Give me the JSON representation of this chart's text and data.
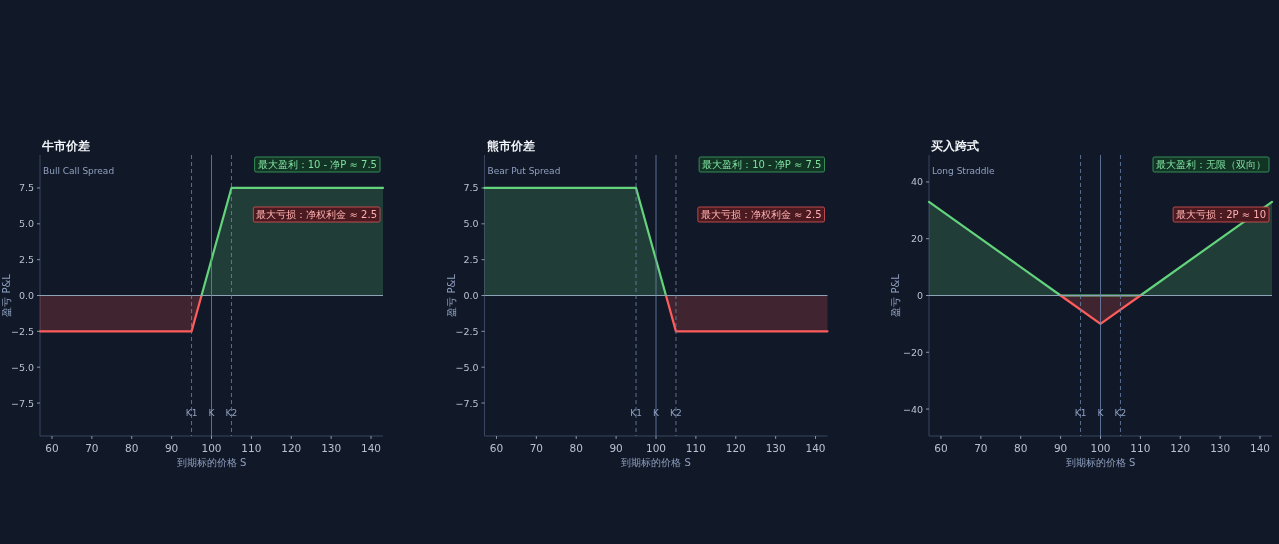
{
  "chart_data": [
    {
      "type": "area",
      "title": "牛市价差",
      "subtitle": "Bull Call Spread",
      "xlabel": "到期标的价格 S",
      "ylabel": "盈亏 P&L",
      "xlim": [
        57,
        143
      ],
      "ylim": [
        -9.8,
        9.8
      ],
      "xticks": [
        60,
        70,
        80,
        90,
        100,
        110,
        120,
        130,
        140
      ],
      "yticks": [
        {
          "value": -7.5,
          "label": "−7.5"
        },
        {
          "value": -5,
          "label": "−5.0"
        },
        {
          "value": -2.5,
          "label": "−2.5"
        },
        {
          "value": 0,
          "label": "0.0"
        },
        {
          "value": 2.5,
          "label": "2.5"
        },
        {
          "value": 5,
          "label": "5.0"
        },
        {
          "value": 7.5,
          "label": "7.5"
        }
      ],
      "series": [
        {
          "color": "#ff5c5c",
          "x": [
            57,
            95,
            97.5
          ],
          "values": [
            -2.5,
            -2.5,
            0
          ]
        },
        {
          "color": "#63d47c",
          "x": [
            97.5,
            105,
            143
          ],
          "values": [
            0,
            7.5,
            7.5
          ]
        }
      ],
      "ref_lines": [
        {
          "axis": "y",
          "value": 0,
          "color": "#8fa3b8",
          "line_style": "solid"
        },
        {
          "axis": "x",
          "value": 95,
          "label": "K1",
          "color": "#6f86b0",
          "line_style": "dashed"
        },
        {
          "axis": "x",
          "value": 100,
          "label": "K",
          "color": "#6f86b0",
          "line_style": "solid"
        },
        {
          "axis": "x",
          "value": 105,
          "label": "K2",
          "color": "#6f86b0",
          "line_style": "dashed"
        }
      ],
      "annotations": [
        "最大盈利：10 - 净P ≈ 7.5",
        "最大亏损：净权利金 ≈ 2.5"
      ]
    },
    {
      "type": "area",
      "title": "熊市价差",
      "subtitle": "Bear Put Spread",
      "xlabel": "到期标的价格 S",
      "ylabel": "盈亏 P&L",
      "xlim": [
        57,
        143
      ],
      "ylim": [
        -9.8,
        9.8
      ],
      "xticks": [
        60,
        70,
        80,
        90,
        100,
        110,
        120,
        130,
        140
      ],
      "yticks": [
        {
          "value": -7.5,
          "label": "−7.5"
        },
        {
          "value": -5,
          "label": "−5.0"
        },
        {
          "value": -2.5,
          "label": "−2.5"
        },
        {
          "value": 0,
          "label": "0.0"
        },
        {
          "value": 2.5,
          "label": "2.5"
        },
        {
          "value": 5,
          "label": "5.0"
        },
        {
          "value": 7.5,
          "label": "7.5"
        }
      ],
      "series": [
        {
          "color": "#63d47c",
          "x": [
            57,
            95,
            102.5
          ],
          "values": [
            7.5,
            7.5,
            0
          ]
        },
        {
          "color": "#ff5c5c",
          "x": [
            102.5,
            105,
            143
          ],
          "values": [
            0,
            -2.5,
            -2.5
          ]
        }
      ],
      "ref_lines": [
        {
          "axis": "y",
          "value": 0,
          "color": "#8fa3b8",
          "line_style": "solid"
        },
        {
          "axis": "x",
          "value": 95,
          "label": "K1",
          "color": "#6f86b0",
          "line_style": "dashed"
        },
        {
          "axis": "x",
          "value": 100,
          "label": "K",
          "color": "#6f86b0",
          "line_style": "solid"
        },
        {
          "axis": "x",
          "value": 105,
          "label": "K2",
          "color": "#6f86b0",
          "line_style": "dashed"
        }
      ],
      "annotations": [
        "最大盈利：10 - 净P ≈ 7.5",
        "最大亏损：净权利金 ≈ 2.5"
      ]
    },
    {
      "type": "area",
      "title": "买入跨式",
      "subtitle": "Long Straddle",
      "xlabel": "到期标的价格 S",
      "ylabel": "盈亏 P&L",
      "xlim": [
        57,
        143
      ],
      "ylim": [
        -49.5,
        49.5
      ],
      "xticks": [
        60,
        70,
        80,
        90,
        100,
        110,
        120,
        130,
        140
      ],
      "yticks": [
        {
          "value": -40,
          "label": "−40"
        },
        {
          "value": -20,
          "label": "−20"
        },
        0,
        20,
        40
      ],
      "series": [
        {
          "color": "#63d47c",
          "x": [
            57,
            90,
            110,
            143
          ],
          "values": [
            33,
            0,
            0,
            33
          ]
        },
        {
          "color": "#ff5c5c",
          "x": [
            90,
            100,
            110
          ],
          "values": [
            0,
            -10,
            0
          ]
        }
      ],
      "ref_lines": [
        {
          "axis": "y",
          "value": 0,
          "color": "#8fa3b8",
          "line_style": "solid"
        },
        {
          "axis": "x",
          "value": 95,
          "label": "K1",
          "color": "#6f86b0",
          "line_style": "dashed"
        },
        {
          "axis": "x",
          "value": 100,
          "label": "K",
          "color": "#6f86b0",
          "line_style": "solid"
        },
        {
          "axis": "x",
          "value": 105,
          "label": "K2",
          "color": "#6f86b0",
          "line_style": "dashed"
        }
      ],
      "annotations": [
        "最大盈利：无限（双向）",
        "最大亏损：2P ≈ 10"
      ]
    }
  ]
}
